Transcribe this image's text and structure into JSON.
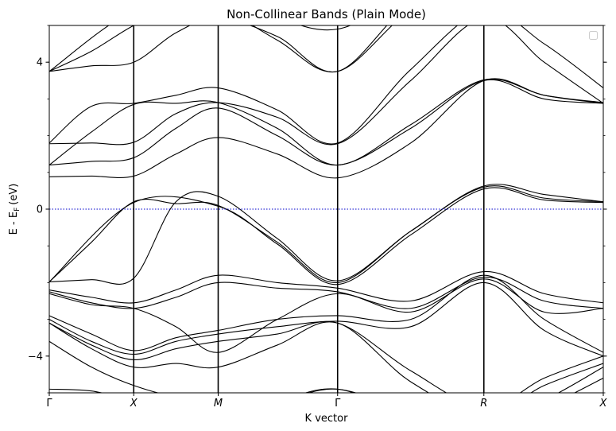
{
  "chart_data": {
    "type": "line",
    "title": "Non-Collinear Bands (Plain Mode)",
    "xlabel": "K vector",
    "ylabel": "E - E",
    "ylabel_sub": "F",
    "ylabel_unit": "(eV)",
    "ylim": [
      -5,
      5
    ],
    "yticks": [
      {
        "value": 4,
        "label": "4"
      },
      {
        "value": 0,
        "label": "0"
      },
      {
        "value": -4,
        "label": "−4"
      }
    ],
    "kpoints": [
      {
        "label": "Γ",
        "x": 0.0
      },
      {
        "label": "X",
        "x": 0.5
      },
      {
        "label": "M",
        "x": 1.0
      },
      {
        "label": "Γ",
        "x": 1.707
      },
      {
        "label": "R",
        "x": 2.573
      },
      {
        "label": "X",
        "x": 3.28
      }
    ],
    "fermi_level": 0,
    "fermi_color": "#0000cc",
    "line_color": "#000000",
    "legend": "top-right",
    "grid": false,
    "bands": [
      {
        "x": [
          0.0,
          0.25,
          0.5,
          0.75,
          1.0,
          1.35,
          1.707,
          2.14,
          2.573,
          2.93,
          3.28
        ],
        "y": [
          -1.98,
          -0.9,
          0.2,
          0.15,
          0.1,
          -0.9,
          -2.0,
          -0.6,
          0.6,
          0.3,
          0.2
        ]
      },
      {
        "x": [
          0.0,
          0.25,
          0.5,
          0.75,
          1.0,
          1.35,
          1.707,
          2.14,
          2.573,
          2.93,
          3.28
        ],
        "y": [
          -1.98,
          -1.92,
          -1.88,
          0.2,
          0.35,
          -0.8,
          -1.95,
          -0.6,
          0.63,
          0.4,
          0.2
        ]
      },
      {
        "x": [
          0.0,
          0.5,
          1.0,
          1.35,
          1.707,
          2.14,
          2.573,
          2.93,
          3.28
        ],
        "y": [
          -1.98,
          0.18,
          0.08,
          -0.95,
          -2.05,
          -0.7,
          0.55,
          0.25,
          0.18
        ]
      },
      {
        "x": [
          0.0,
          0.25,
          0.5,
          0.75,
          1.0,
          1.35,
          1.707,
          2.14,
          2.573,
          2.93,
          3.28
        ],
        "y": [
          0.88,
          0.9,
          0.9,
          1.5,
          1.95,
          1.5,
          0.85,
          1.8,
          3.5,
          3.1,
          2.9
        ]
      },
      {
        "x": [
          0.0,
          0.25,
          0.5,
          0.75,
          1.0,
          1.35,
          1.707,
          2.14,
          2.573,
          2.93,
          3.28
        ],
        "y": [
          1.2,
          1.3,
          1.4,
          2.2,
          2.75,
          2.0,
          1.2,
          2.2,
          3.5,
          3.0,
          2.88
        ]
      },
      {
        "x": [
          0.0,
          0.25,
          0.5,
          0.75,
          1.0,
          1.35,
          1.707,
          2.14,
          2.573,
          2.93,
          3.28
        ],
        "y": [
          1.2,
          2.1,
          2.85,
          2.88,
          2.9,
          2.2,
          1.2,
          2.3,
          3.52,
          3.1,
          2.88
        ]
      },
      {
        "x": [
          0.0,
          0.25,
          0.5,
          0.75,
          1.0,
          1.35,
          1.707,
          2.14,
          2.573,
          2.93,
          3.28
        ],
        "y": [
          1.78,
          1.8,
          1.82,
          2.6,
          2.9,
          2.5,
          1.78,
          3.5,
          5.2,
          4.0,
          2.88
        ]
      },
      {
        "x": [
          0.0,
          0.25,
          0.5,
          0.75,
          1.0,
          1.35,
          1.707,
          2.14,
          2.573,
          2.93,
          3.28
        ],
        "y": [
          1.8,
          2.8,
          2.88,
          3.1,
          3.3,
          2.7,
          1.8,
          3.8,
          5.4,
          4.5,
          3.3
        ]
      },
      {
        "x": [
          0.0,
          0.25,
          0.5,
          0.75,
          1.0,
          1.35,
          1.707,
          2.14,
          2.573,
          2.93,
          3.28
        ],
        "y": [
          3.75,
          4.3,
          5.0,
          5.5,
          5.5,
          4.6,
          3.75,
          5.4,
          6.0,
          5.5,
          5.0
        ]
      },
      {
        "x": [
          0.0,
          0.25,
          0.5,
          0.75,
          1.0,
          1.35,
          1.707,
          2.14,
          2.573,
          2.93,
          3.28
        ],
        "y": [
          3.75,
          3.9,
          4.0,
          4.8,
          5.2,
          4.7,
          3.75,
          5.6,
          6.2,
          5.6,
          5.0
        ]
      },
      {
        "x": [
          0.0,
          0.5,
          1.0,
          1.35,
          1.707,
          2.14,
          2.573,
          3.28
        ],
        "y": [
          3.75,
          5.4,
          5.8,
          5.2,
          4.9,
          5.8,
          6.2,
          5.6
        ]
      },
      {
        "x": [
          0.0,
          0.25,
          0.5,
          0.75,
          1.0,
          1.35,
          1.707,
          2.14,
          2.573,
          2.93,
          3.28
        ],
        "y": [
          -2.2,
          -2.4,
          -2.55,
          -2.2,
          -1.8,
          -2.0,
          -2.15,
          -2.5,
          -1.7,
          -2.3,
          -2.55
        ]
      },
      {
        "x": [
          0.0,
          0.25,
          0.5,
          0.75,
          1.0,
          1.35,
          1.707,
          2.14,
          2.573,
          2.93,
          3.28
        ],
        "y": [
          -2.25,
          -2.55,
          -2.7,
          -2.4,
          -2.0,
          -2.15,
          -2.25,
          -2.7,
          -1.85,
          -2.5,
          -2.7
        ]
      },
      {
        "x": [
          0.0,
          0.25,
          0.5,
          0.75,
          1.0,
          1.35,
          1.707,
          2.14,
          2.573,
          2.93,
          3.28
        ],
        "y": [
          -2.3,
          -2.6,
          -2.7,
          -3.2,
          -3.9,
          -3.0,
          -2.3,
          -2.8,
          -1.9,
          -2.8,
          -2.7
        ]
      },
      {
        "x": [
          0.0,
          0.25,
          0.5,
          0.75,
          1.0,
          1.35,
          1.707,
          2.14,
          2.573,
          2.93,
          3.28
        ],
        "y": [
          -2.9,
          -3.4,
          -3.85,
          -3.5,
          -3.3,
          -3.0,
          -2.9,
          -3.0,
          -1.8,
          -3.0,
          -3.9
        ]
      },
      {
        "x": [
          0.0,
          0.25,
          0.5,
          0.75,
          1.0,
          1.35,
          1.707,
          2.14,
          2.573,
          2.93,
          3.28
        ],
        "y": [
          -3.0,
          -3.6,
          -3.95,
          -3.6,
          -3.4,
          -3.2,
          -3.05,
          -3.2,
          -2.0,
          -3.3,
          -4.0
        ]
      },
      {
        "x": [
          0.0,
          0.25,
          0.5,
          0.75,
          1.0,
          1.35,
          1.707,
          2.14,
          2.573,
          2.93,
          3.28
        ],
        "y": [
          -3.1,
          -3.7,
          -4.1,
          -3.8,
          -3.6,
          -3.4,
          -3.1,
          -4.4,
          -5.4,
          -4.6,
          -4.0
        ]
      },
      {
        "x": [
          0.0,
          0.25,
          0.5,
          0.75,
          1.0,
          1.35,
          1.707,
          2.14,
          2.573,
          2.93,
          3.28
        ],
        "y": [
          -3.1,
          -3.8,
          -4.3,
          -4.2,
          -4.3,
          -3.7,
          -3.1,
          -4.7,
          -5.6,
          -4.8,
          -4.2
        ]
      },
      {
        "x": [
          0.0,
          0.25,
          0.5,
          0.75,
          1.0,
          1.35,
          1.707,
          2.14,
          2.573,
          2.93,
          3.28
        ],
        "y": [
          -3.6,
          -4.3,
          -4.8,
          -5.1,
          -5.1,
          -5.2,
          -4.9,
          -5.5,
          -5.8,
          -5.2,
          -4.3
        ]
      },
      {
        "x": [
          0.0,
          0.25,
          0.5,
          0.75,
          1.0,
          1.35,
          1.707,
          2.14,
          2.573,
          2.93,
          3.28
        ],
        "y": [
          -4.9,
          -4.95,
          -5.2,
          -5.3,
          -5.4,
          -5.2,
          -4.9,
          -5.6,
          -6.0,
          -5.4,
          -4.6
        ]
      }
    ]
  }
}
